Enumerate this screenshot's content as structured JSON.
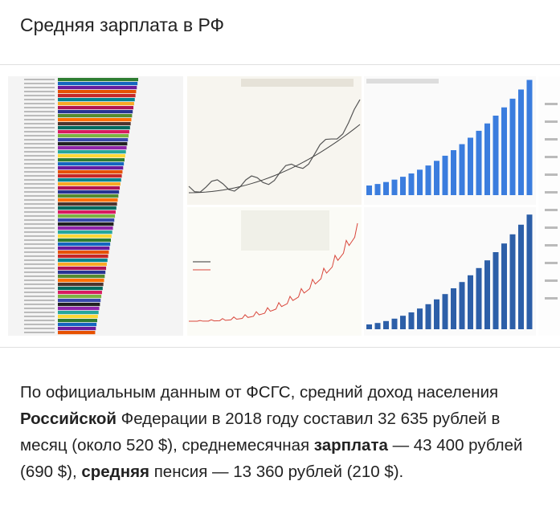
{
  "header": {
    "title": "Средняя зарплата в РФ"
  },
  "snippet": {
    "segments": [
      {
        "text": "По официальным данным от ФСГС, средний доход населения ",
        "bold": false
      },
      {
        "text": "Российской",
        "bold": true
      },
      {
        "text": " Федерации в 2018 году составил 32 635 рублей в месяц (около 520 $), среднемесячная ",
        "bold": false
      },
      {
        "text": "зарплата",
        "bold": true
      },
      {
        "text": " — 43 400 рублей (690 $), ",
        "bold": false
      },
      {
        "text": "средняя",
        "bold": true
      },
      {
        "text": " пенсия — 13 360 рублей (210 $).",
        "bold": false
      }
    ]
  }
}
